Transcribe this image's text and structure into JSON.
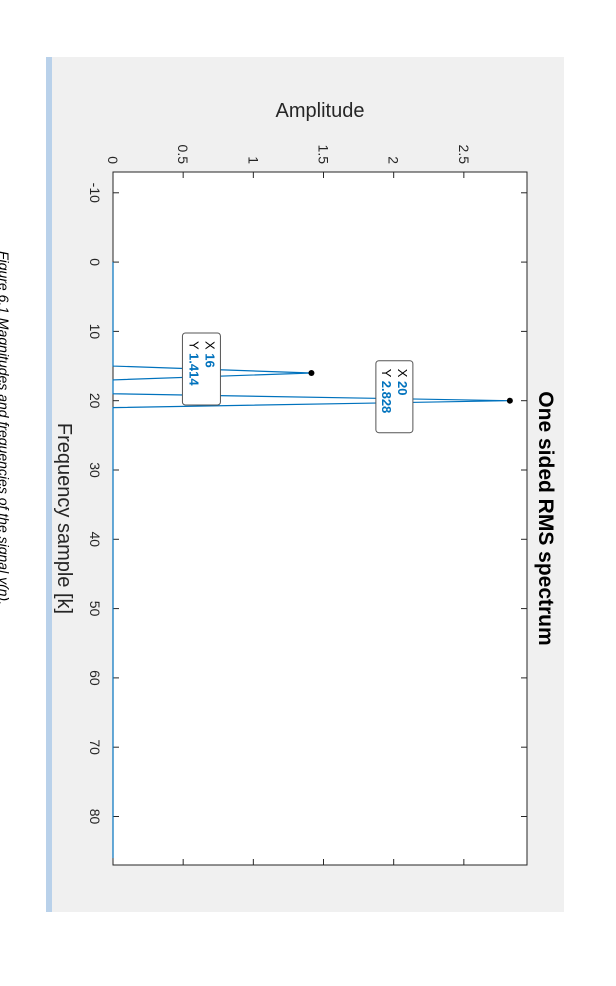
{
  "caption": "Figure 6.1 Magnitudes and frequencies of the signal y(n).",
  "chart_data": {
    "type": "line",
    "title": "One sided RMS spectrum",
    "xlabel": "Frequency sample [k]",
    "ylabel": "Amplitude",
    "xlim": [
      -13,
      87
    ],
    "ylim": [
      0,
      2.95
    ],
    "x_ticks": [
      -10,
      0,
      10,
      20,
      30,
      40,
      50,
      60,
      70,
      80
    ],
    "y_ticks": [
      "0",
      "0.5",
      "1",
      "1.5",
      "2",
      "2.5"
    ],
    "y_tick_values": [
      0,
      0.5,
      1,
      1.5,
      2,
      2.5
    ],
    "series": [
      {
        "color": "#0072bd",
        "x": [
          0,
          15,
          16,
          17,
          18,
          19,
          20,
          21,
          22,
          86
        ],
        "y": [
          0,
          0,
          1.414,
          0,
          0,
          0,
          2.828,
          0,
          0,
          0
        ]
      }
    ],
    "datatips": [
      {
        "x_label": "X",
        "x_value": "16",
        "y_label": "Y",
        "y_value": "1.414"
      },
      {
        "x_label": "X",
        "x_value": "20",
        "y_label": "Y",
        "y_value": "2.828"
      }
    ],
    "rotation": "90deg clockwise"
  }
}
